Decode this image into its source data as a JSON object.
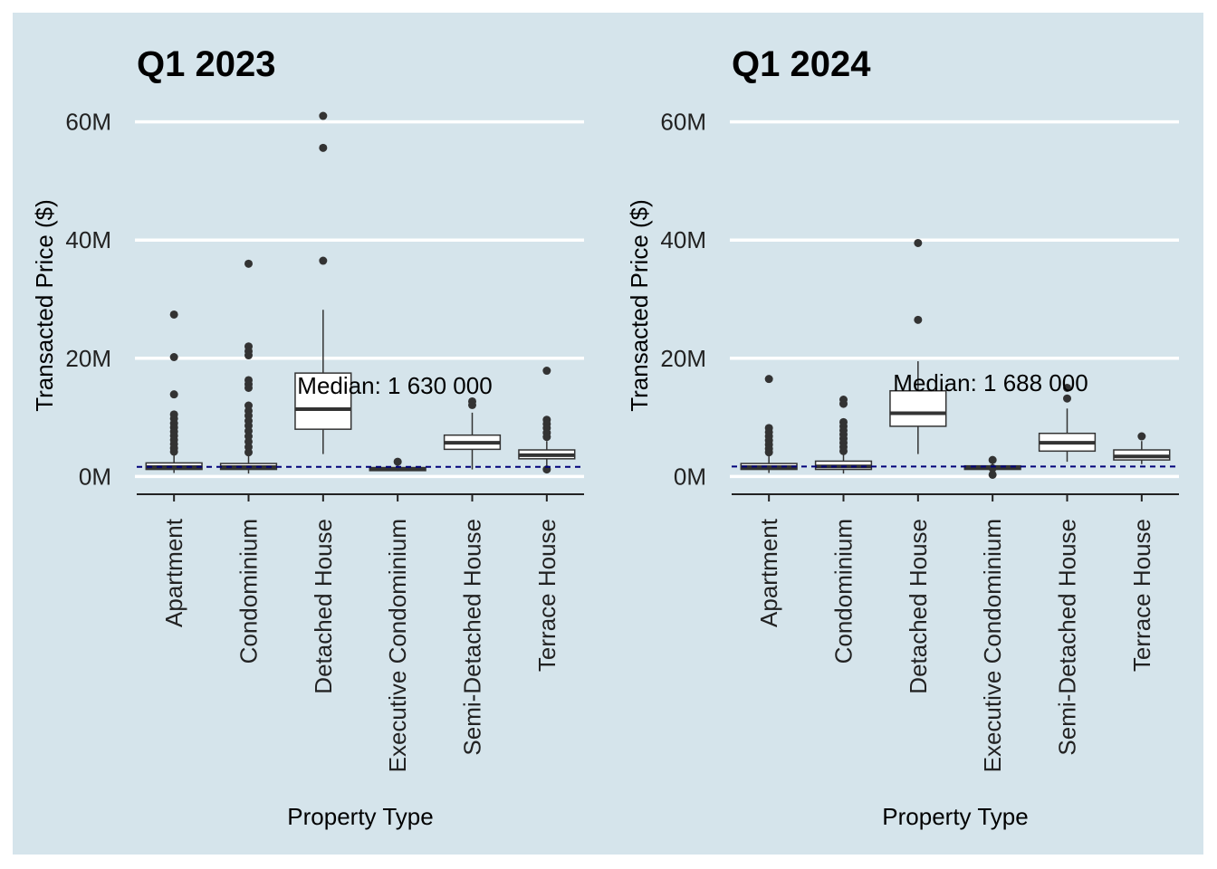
{
  "chart_data": [
    {
      "type": "box",
      "title": "Q1 2023",
      "xlabel": "Property Type",
      "ylabel": "Transacted Price ($)",
      "ylim": [
        -3,
        63
      ],
      "yticks": [
        0,
        20,
        40,
        60
      ],
      "ytick_labels": [
        "0M",
        "20M",
        "40M",
        "60M"
      ],
      "grid": "horizontal major",
      "categories": [
        "Apartment",
        "Condominium",
        "Detached House",
        "Executive Condominium",
        "Semi-Detached House",
        "Terrace House"
      ],
      "boxes": [
        {
          "q1": 1.2,
          "median": 1.6,
          "q3": 2.3,
          "low": 0.6,
          "high": 3.7,
          "outliers": [
            27.4,
            20.2,
            13.9,
            10.5,
            9.8,
            9.0,
            8.3,
            7.6,
            6.9,
            6.2,
            5.5,
            4.8,
            4.2
          ]
        },
        {
          "q1": 1.2,
          "median": 1.6,
          "q3": 2.2,
          "low": 0.5,
          "high": 3.6,
          "outliers": [
            36.0,
            22.0,
            21.2,
            20.5,
            16.3,
            15.6,
            15.0,
            12.0,
            11.1,
            10.3,
            9.4,
            8.6,
            7.7,
            6.8,
            5.9,
            5.0,
            4.1
          ]
        },
        {
          "q1": 8.0,
          "median": 11.4,
          "q3": 17.5,
          "low": 3.8,
          "high": 28.2,
          "outliers": [
            61.0,
            55.6,
            36.5
          ]
        },
        {
          "q1": 1.0,
          "median": 1.3,
          "q3": 1.5,
          "low": 0.9,
          "high": 2.1,
          "outliers": [
            2.5
          ]
        },
        {
          "q1": 4.6,
          "median": 5.7,
          "q3": 7.0,
          "low": 1.2,
          "high": 10.8,
          "outliers": [
            12.7,
            12.1
          ]
        },
        {
          "q1": 3.0,
          "median": 3.6,
          "q3": 4.5,
          "low": 1.5,
          "high": 6.0,
          "outliers": [
            17.9,
            9.6,
            8.9,
            8.2,
            7.4,
            6.7,
            1.2
          ]
        }
      ],
      "median_line": 1.63,
      "median_label": "Median: 1 630 000"
    },
    {
      "type": "box",
      "title": "Q1 2024",
      "xlabel": "Property Type",
      "ylabel": "Transacted Price ($)",
      "ylim": [
        -3,
        63
      ],
      "yticks": [
        0,
        20,
        40,
        60
      ],
      "ytick_labels": [
        "0M",
        "20M",
        "40M",
        "60M"
      ],
      "grid": "horizontal major",
      "categories": [
        "Apartment",
        "Condominium",
        "Detached House",
        "Executive Condominium",
        "Semi-Detached House",
        "Terrace House"
      ],
      "boxes": [
        {
          "q1": 1.2,
          "median": 1.6,
          "q3": 2.2,
          "low": 0.6,
          "high": 3.5,
          "outliers": [
            16.5,
            8.2,
            7.5,
            6.8,
            6.1,
            5.4,
            4.7,
            4.1
          ]
        },
        {
          "q1": 1.2,
          "median": 1.7,
          "q3": 2.6,
          "low": 0.5,
          "high": 4.0,
          "outliers": [
            13.0,
            12.3,
            9.2,
            8.5,
            7.8,
            7.1,
            6.4,
            5.7,
            5.0,
            4.3
          ]
        },
        {
          "q1": 8.5,
          "median": 10.7,
          "q3": 14.5,
          "low": 3.8,
          "high": 19.5,
          "outliers": [
            39.5,
            26.5
          ]
        },
        {
          "q1": 1.2,
          "median": 1.5,
          "q3": 1.8,
          "low": 0.6,
          "high": 2.4,
          "outliers": [
            2.8,
            1.4,
            0.3
          ]
        },
        {
          "q1": 4.3,
          "median": 5.7,
          "q3": 7.3,
          "low": 2.5,
          "high": 11.5,
          "outliers": [
            15.0,
            13.2
          ]
        },
        {
          "q1": 2.8,
          "median": 3.4,
          "q3": 4.5,
          "low": 2.1,
          "high": 6.0,
          "outliers": [
            6.8
          ]
        }
      ],
      "median_line": 1.688,
      "median_label": "Median: 1 688 000"
    }
  ]
}
